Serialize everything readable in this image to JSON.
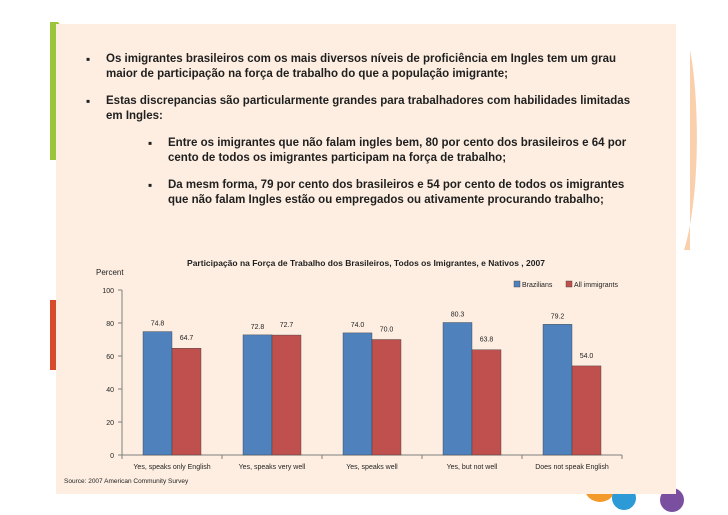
{
  "bullets": {
    "b1": "Os imigrantes brasileiros com os mais diversos níveis de proficiência em Ingles tem um grau maior de participação na força de trabalho do que a população imigrante;",
    "b2": "Estas discrepancias são particularmente grandes para trabalhadores com habilidades limitadas em Ingles:",
    "b3": "Entre os imigrantes que não falam ingles bem, 80 por cento dos brasileiros e 64 por cento de todos os imigrantes participam na força de trabalho;",
    "b4": "Da mesm forma, 79 por cento dos brasileiros e 54 por cento de todos os imigrantes que não falam Ingles estão ou empregados ou ativamente procurando trabalho;"
  },
  "chart_data": {
    "type": "bar",
    "title": "Participação na Força de Trabalho dos Brasileiros, Todos os Imigrantes, e Nativos , 2007",
    "ylabel": "Percent",
    "xlabel": "",
    "ylim": [
      0,
      100
    ],
    "yticks": [
      0,
      20,
      40,
      60,
      80,
      100
    ],
    "categories": [
      "Yes, speaks only English",
      "Yes, speaks very well",
      "Yes, speaks well",
      "Yes, but not well",
      "Does not speak English"
    ],
    "series": [
      {
        "name": "Brazilians",
        "color": "#4f81bd",
        "values": [
          74.8,
          72.8,
          74.0,
          80.3,
          79.2
        ]
      },
      {
        "name": "All immigrants",
        "color": "#c0504d",
        "values": [
          64.7,
          72.7,
          70.0,
          63.8,
          54.0
        ]
      }
    ],
    "data_labels": [
      [
        "74.8",
        "72.8",
        "74.0",
        "80.3",
        "79.2"
      ],
      [
        "64.7",
        "72.7",
        "70.0",
        "63.8",
        "54.0"
      ]
    ],
    "legend": "top-right",
    "grid": false,
    "source": "Source: 2007 American Community Survey"
  }
}
